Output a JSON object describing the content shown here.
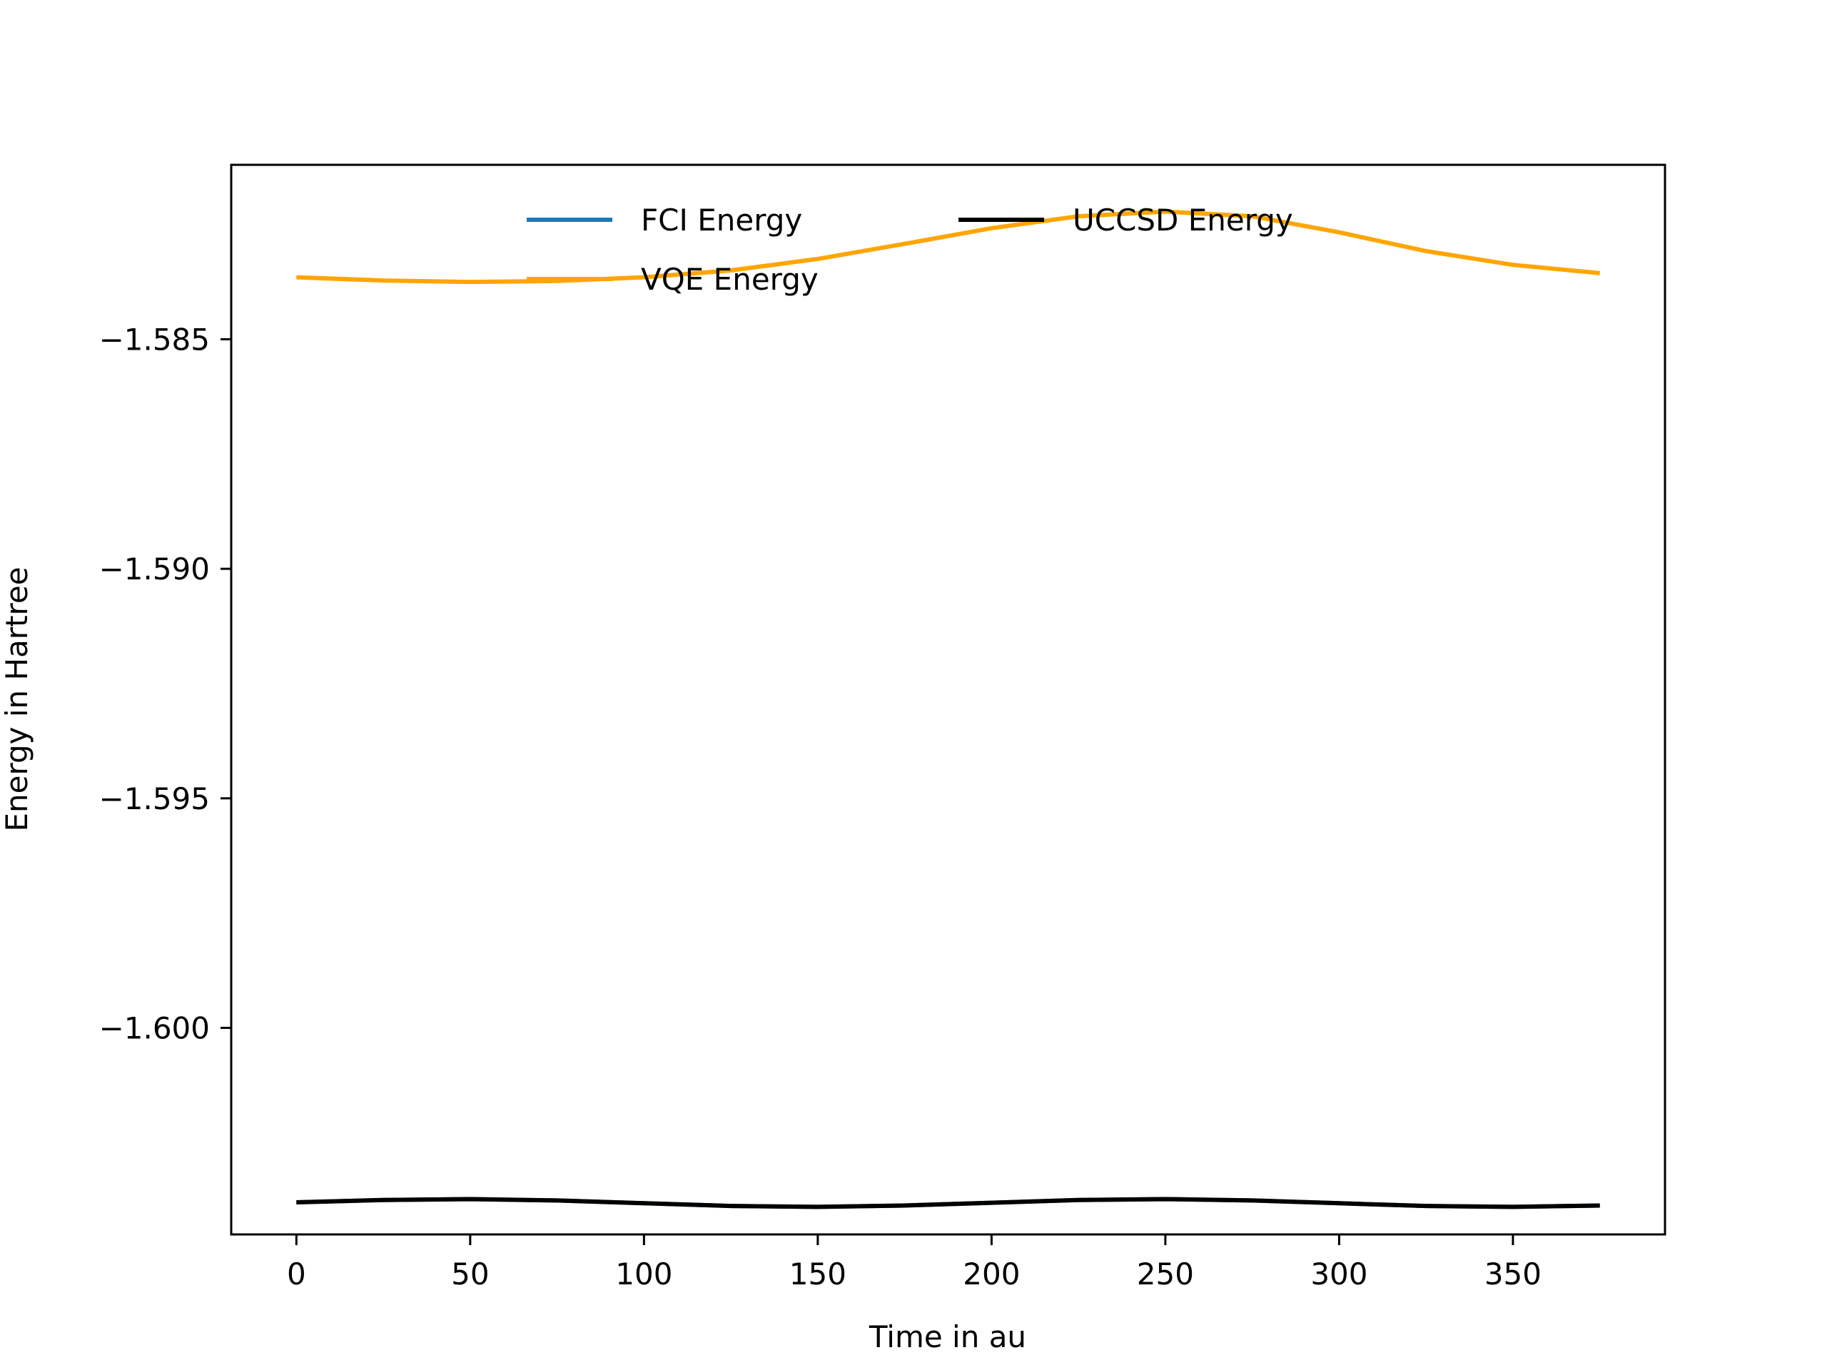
{
  "chart_data": {
    "type": "line",
    "title": "",
    "xlabel": "Time in au",
    "ylabel": "Energy in Hartree",
    "xlim": [
      -18.75,
      393.75
    ],
    "ylim": [
      -1.6045,
      -1.5812
    ],
    "x_ticks": [
      0,
      50,
      100,
      150,
      200,
      250,
      300,
      350
    ],
    "x_tick_labels": [
      "0",
      "50",
      "100",
      "150",
      "200",
      "250",
      "300",
      "350"
    ],
    "y_ticks": [
      -1.585,
      -1.59,
      -1.595,
      -1.6
    ],
    "y_tick_labels": [
      "−1.585",
      "−1.590",
      "−1.595",
      "−1.600"
    ],
    "grid": false,
    "legend": {
      "placement": "upper center",
      "ncol": 2
    },
    "series": [
      {
        "name": "FCI Energy",
        "color": "#1f77b4",
        "x": [
          0,
          25,
          50,
          75,
          100,
          125,
          150,
          175,
          200,
          225,
          250,
          275,
          300,
          325,
          350,
          375
        ],
        "y": [
          -1.6038,
          -1.60375,
          -1.60373,
          -1.60376,
          -1.60382,
          -1.60388,
          -1.6039,
          -1.60387,
          -1.60381,
          -1.60375,
          -1.60373,
          -1.60376,
          -1.60382,
          -1.60388,
          -1.6039,
          -1.60387
        ]
      },
      {
        "name": "VQE Energy",
        "color": "#ffa500",
        "x": [
          0,
          25,
          50,
          75,
          100,
          125,
          150,
          175,
          200,
          225,
          250,
          275,
          300,
          325,
          350,
          375
        ],
        "y": [
          -1.58365,
          -1.58372,
          -1.58375,
          -1.58373,
          -1.58365,
          -1.5835,
          -1.58325,
          -1.58292,
          -1.58258,
          -1.58232,
          -1.58222,
          -1.58232,
          -1.58267,
          -1.58308,
          -1.58338,
          -1.58356
        ]
      },
      {
        "name": "UCCSD Energy",
        "color": "#000000",
        "x": [
          0,
          25,
          50,
          75,
          100,
          125,
          150,
          175,
          200,
          225,
          250,
          275,
          300,
          325,
          350,
          375
        ],
        "y": [
          -1.6038,
          -1.60375,
          -1.60373,
          -1.60376,
          -1.60382,
          -1.60388,
          -1.6039,
          -1.60387,
          -1.60381,
          -1.60375,
          -1.60373,
          -1.60376,
          -1.60382,
          -1.60388,
          -1.6039,
          -1.60387
        ]
      }
    ]
  }
}
